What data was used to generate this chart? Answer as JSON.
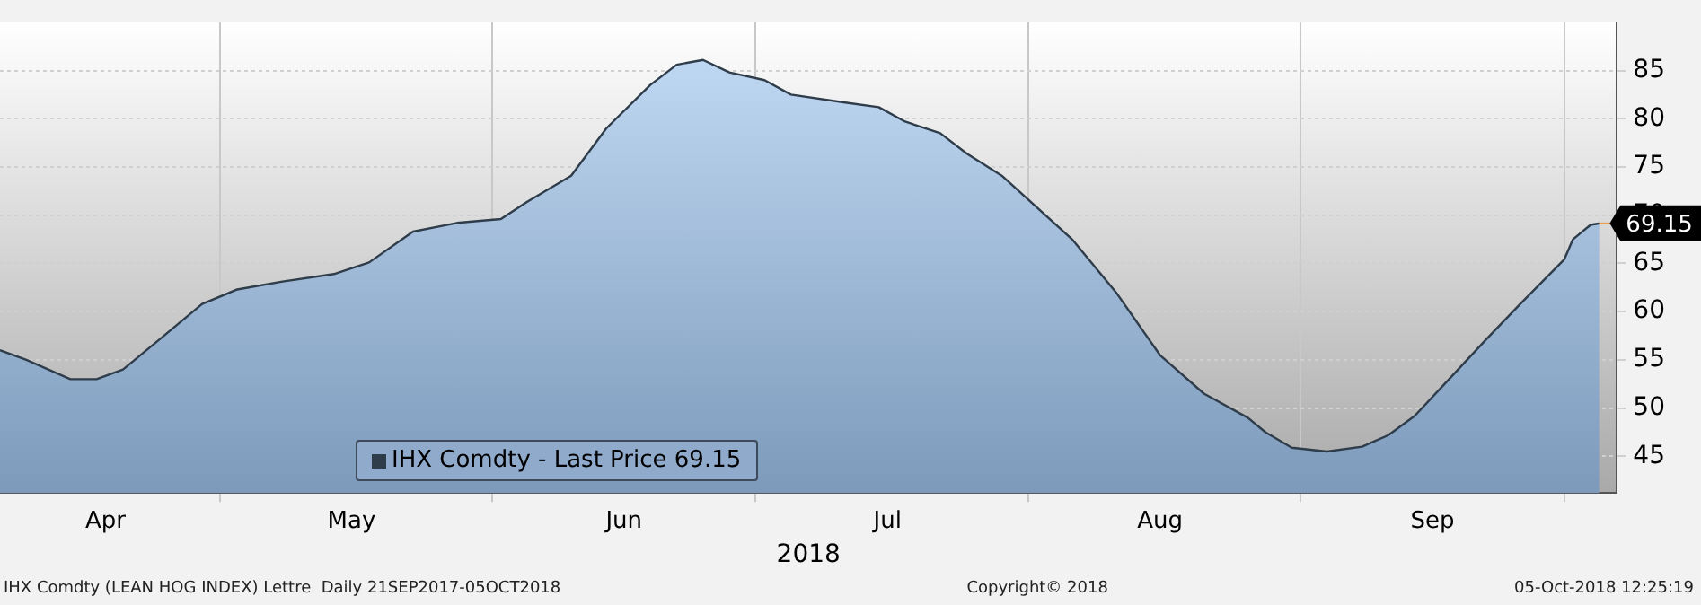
{
  "chart_data": {
    "type": "area",
    "xlabel": "2018",
    "x": [
      "2018-04-06",
      "2018-04-09",
      "2018-04-14",
      "2018-04-17",
      "2018-04-20",
      "2018-04-24",
      "2018-04-29",
      "2018-05-03",
      "2018-05-08",
      "2018-05-14",
      "2018-05-18",
      "2018-05-23",
      "2018-05-28",
      "2018-06-02",
      "2018-06-05",
      "2018-06-10",
      "2018-06-14",
      "2018-06-19",
      "2018-06-22",
      "2018-06-25",
      "2018-06-28",
      "2018-07-02",
      "2018-07-05",
      "2018-07-11",
      "2018-07-15",
      "2018-07-18",
      "2018-07-22",
      "2018-07-25",
      "2018-07-29",
      "2018-08-02",
      "2018-08-06",
      "2018-08-11",
      "2018-08-16",
      "2018-08-21",
      "2018-08-26",
      "2018-08-28",
      "2018-08-31",
      "2018-09-04",
      "2018-09-08",
      "2018-09-11",
      "2018-09-14",
      "2018-09-18",
      "2018-09-22",
      "2018-09-26",
      "2018-10-01",
      "2018-10-02",
      "2018-10-04",
      "2018-10-05"
    ],
    "series": [
      {
        "name": "IHX Comdty - Last Price 69.15",
        "color": "#2f3c4a",
        "values": [
          56.0,
          55.0,
          53.0,
          53.0,
          54.0,
          57.0,
          60.8,
          62.3,
          63.1,
          63.9,
          65.1,
          68.3,
          69.2,
          69.6,
          71.4,
          74.1,
          79.0,
          83.5,
          85.6,
          86.1,
          84.8,
          84.0,
          82.5,
          81.7,
          81.2,
          79.7,
          78.5,
          76.4,
          74.1,
          70.8,
          67.5,
          62.0,
          55.5,
          51.5,
          49.0,
          47.5,
          45.9,
          45.5,
          46.0,
          47.2,
          49.2,
          53.1,
          57.0,
          60.8,
          65.4,
          67.5,
          69.0,
          69.15
        ]
      }
    ],
    "xlim": [
      "2018-04-06",
      "2018-10-07"
    ],
    "xticks": [
      {
        "value": "2018-04-18",
        "label": "Apr"
      },
      {
        "value": "2018-05-01",
        "label": null
      },
      {
        "value": "2018-05-16",
        "label": "May"
      },
      {
        "value": "2018-06-01",
        "label": null
      },
      {
        "value": "2018-06-16",
        "label": "Jun"
      },
      {
        "value": "2018-07-01",
        "label": null
      },
      {
        "value": "2018-07-16",
        "label": "Jul"
      },
      {
        "value": "2018-08-01",
        "label": null
      },
      {
        "value": "2018-08-16",
        "label": "Aug"
      },
      {
        "value": "2018-09-01",
        "label": null
      },
      {
        "value": "2018-09-16",
        "label": "Sep"
      },
      {
        "value": "2018-10-01",
        "label": null
      }
    ],
    "ylim": [
      41.2,
      90
    ],
    "yticks": [
      45,
      50,
      55,
      60,
      65,
      70,
      75,
      80,
      85
    ],
    "grid": true,
    "legend": "bottom left",
    "annotations": [
      {
        "text": "69.15",
        "x": "2018-10-05",
        "y": 69.15
      },
      "IHX Comdty (LEAN HOG INDEX) Lettre  Daily 21SEP2017-05OCT2018",
      "Copyright© 2018",
      "05-Oct-2018 12:25:19"
    ]
  }
}
